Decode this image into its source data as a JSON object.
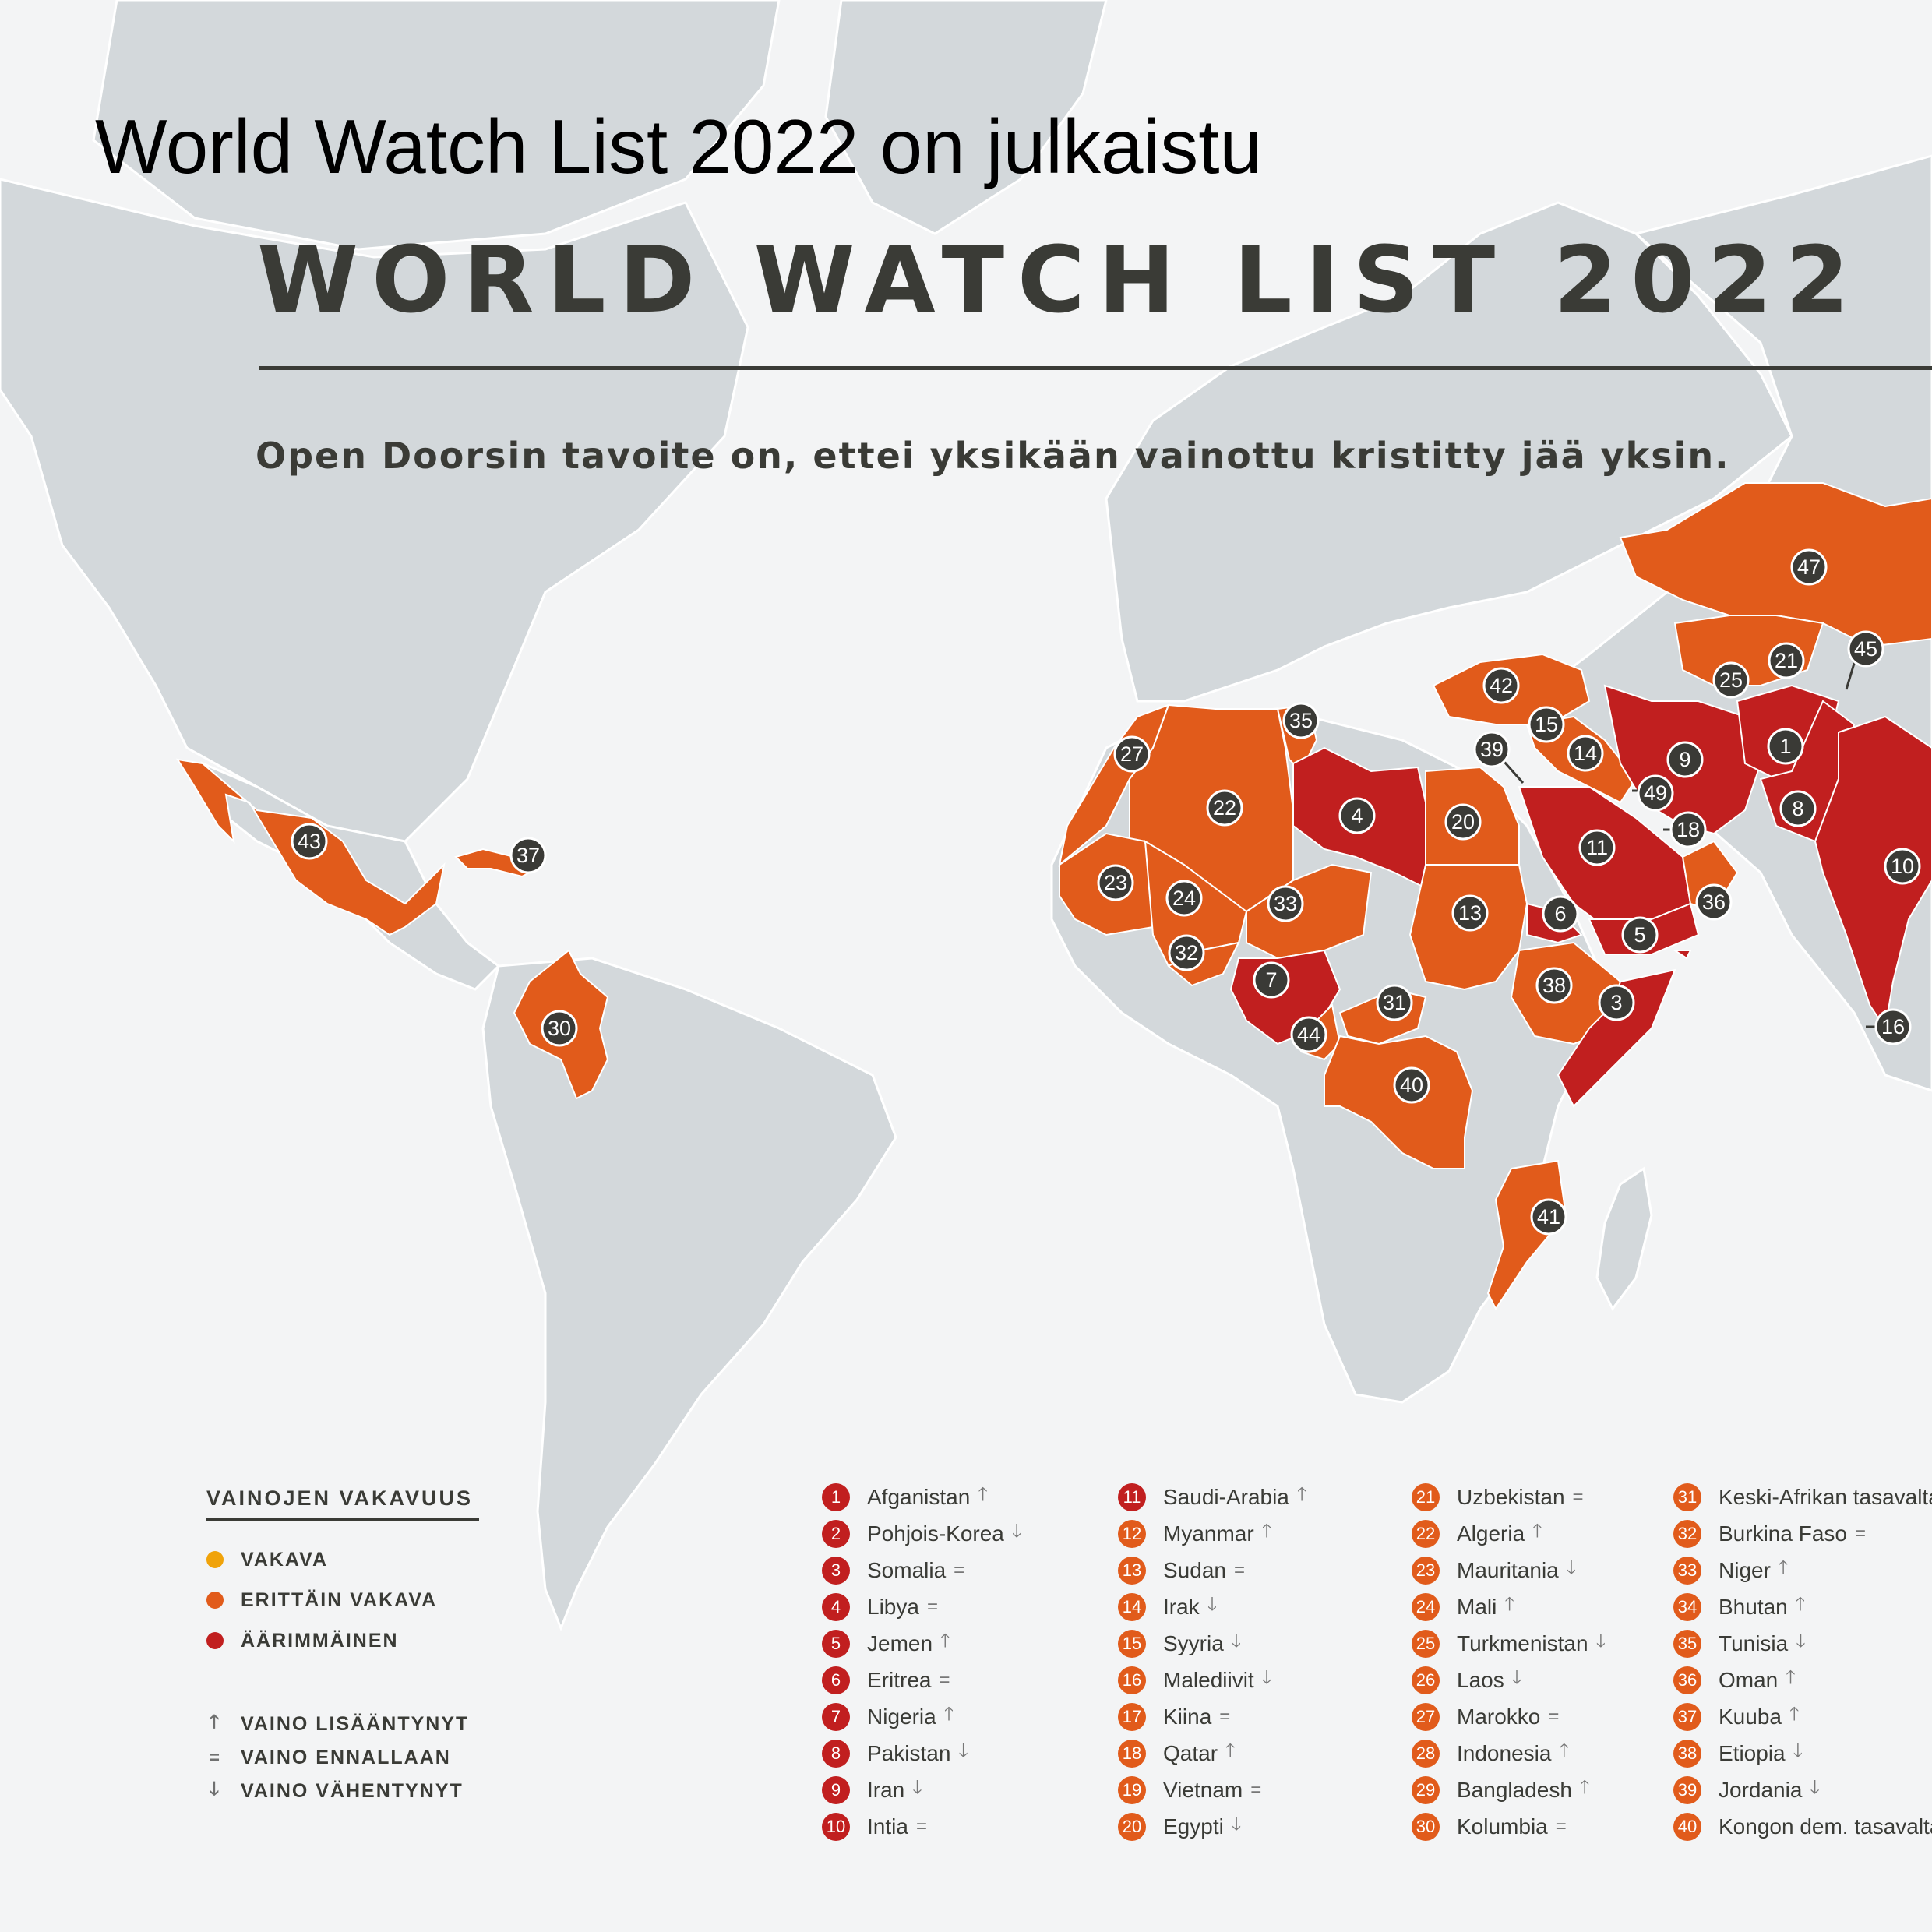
{
  "header": {
    "top_title": "World Watch List 2022 on julkaistu",
    "main_title": "WORLD WATCH LIST 2022",
    "subtitle": "Open Doorsin tavoite on, ettei yksikään vainottu kristitty jää yksin."
  },
  "colors": {
    "background": "#f3f4f5",
    "land": "#d3d8db",
    "vakava": "#f0a30a",
    "erittain_vakava": "#e15b1b",
    "aarimmainen": "#c11f1f",
    "marker": "#3a3a36",
    "text": "#3a3b36"
  },
  "legend": {
    "title": "VAINOJEN VAKAVUUS",
    "severity": [
      {
        "label": "VAKAVA",
        "color": "#f0a30a"
      },
      {
        "label": "ERITTÄIN VAKAVA",
        "color": "#e15b1b"
      },
      {
        "label": "ÄÄRIMMÄINEN",
        "color": "#c11f1f"
      }
    ],
    "trends": [
      {
        "symbol": "🡑",
        "label": "VAINO LISÄÄNTYNYT"
      },
      {
        "symbol": "=",
        "label": "VAINO ENNALLAAN"
      },
      {
        "symbol": "🡓",
        "label": "VAINO VÄHENTYNYT"
      }
    ]
  },
  "rankings": [
    {
      "rank": "1",
      "name": "Afganistan",
      "trend": "🡑",
      "severity": "extreme"
    },
    {
      "rank": "2",
      "name": "Pohjois-Korea",
      "trend": "🡓",
      "severity": "extreme"
    },
    {
      "rank": "3",
      "name": "Somalia",
      "trend": "=",
      "severity": "extreme"
    },
    {
      "rank": "4",
      "name": "Libya",
      "trend": "=",
      "severity": "extreme"
    },
    {
      "rank": "5",
      "name": "Jemen",
      "trend": "🡑",
      "severity": "extreme"
    },
    {
      "rank": "6",
      "name": "Eritrea",
      "trend": "=",
      "severity": "extreme"
    },
    {
      "rank": "7",
      "name": "Nigeria",
      "trend": "🡑",
      "severity": "extreme"
    },
    {
      "rank": "8",
      "name": "Pakistan",
      "trend": "🡓",
      "severity": "extreme"
    },
    {
      "rank": "9",
      "name": "Iran",
      "trend": "🡓",
      "severity": "extreme"
    },
    {
      "rank": "10",
      "name": "Intia",
      "trend": "=",
      "severity": "extreme"
    },
    {
      "rank": "11",
      "name": "Saudi-Arabia",
      "trend": "🡑",
      "severity": "extreme"
    },
    {
      "rank": "12",
      "name": "Myanmar",
      "trend": "🡑",
      "severity": "very"
    },
    {
      "rank": "13",
      "name": "Sudan",
      "trend": "=",
      "severity": "very"
    },
    {
      "rank": "14",
      "name": "Irak",
      "trend": "🡓",
      "severity": "very"
    },
    {
      "rank": "15",
      "name": "Syyria",
      "trend": "🡓",
      "severity": "very"
    },
    {
      "rank": "16",
      "name": "Malediivit",
      "trend": "🡓",
      "severity": "very"
    },
    {
      "rank": "17",
      "name": "Kiina",
      "trend": "=",
      "severity": "very"
    },
    {
      "rank": "18",
      "name": "Qatar",
      "trend": "🡑",
      "severity": "very"
    },
    {
      "rank": "19",
      "name": "Vietnam",
      "trend": "=",
      "severity": "very"
    },
    {
      "rank": "20",
      "name": "Egypti",
      "trend": "🡓",
      "severity": "very"
    },
    {
      "rank": "21",
      "name": "Uzbekistan",
      "trend": "=",
      "severity": "very"
    },
    {
      "rank": "22",
      "name": "Algeria",
      "trend": "🡑",
      "severity": "very"
    },
    {
      "rank": "23",
      "name": "Mauritania",
      "trend": "🡓",
      "severity": "very"
    },
    {
      "rank": "24",
      "name": "Mali",
      "trend": "🡑",
      "severity": "very"
    },
    {
      "rank": "25",
      "name": "Turkmenistan",
      "trend": "🡓",
      "severity": "very"
    },
    {
      "rank": "26",
      "name": "Laos",
      "trend": "🡓",
      "severity": "very"
    },
    {
      "rank": "27",
      "name": "Marokko",
      "trend": "=",
      "severity": "very"
    },
    {
      "rank": "28",
      "name": "Indonesia",
      "trend": "🡑",
      "severity": "very"
    },
    {
      "rank": "29",
      "name": "Bangladesh",
      "trend": "🡑",
      "severity": "very"
    },
    {
      "rank": "30",
      "name": "Kolumbia",
      "trend": "=",
      "severity": "very"
    },
    {
      "rank": "31",
      "name": "Keski-Afrikan tasavalta",
      "trend": "",
      "severity": "very"
    },
    {
      "rank": "32",
      "name": "Burkina Faso",
      "trend": "=",
      "severity": "very"
    },
    {
      "rank": "33",
      "name": "Niger",
      "trend": "🡑",
      "severity": "very"
    },
    {
      "rank": "34",
      "name": "Bhutan",
      "trend": "🡑",
      "severity": "very"
    },
    {
      "rank": "35",
      "name": "Tunisia",
      "trend": "🡓",
      "severity": "very"
    },
    {
      "rank": "36",
      "name": "Oman",
      "trend": "🡑",
      "severity": "very"
    },
    {
      "rank": "37",
      "name": "Kuuba",
      "trend": "🡑",
      "severity": "very"
    },
    {
      "rank": "38",
      "name": "Etiopia",
      "trend": "🡓",
      "severity": "very"
    },
    {
      "rank": "39",
      "name": "Jordania",
      "trend": "🡓",
      "severity": "very"
    },
    {
      "rank": "40",
      "name": "Kongon dem. tasavalta",
      "trend": "",
      "severity": "very"
    }
  ],
  "map_markers": [
    "1",
    "3",
    "4",
    "5",
    "6",
    "7",
    "8",
    "9",
    "10",
    "11",
    "13",
    "14",
    "15",
    "16",
    "18",
    "20",
    "21",
    "22",
    "23",
    "24",
    "25",
    "27",
    "30",
    "31",
    "32",
    "33",
    "35",
    "36",
    "37",
    "38",
    "39",
    "40",
    "41",
    "42",
    "43",
    "44",
    "45",
    "47",
    "49"
  ]
}
